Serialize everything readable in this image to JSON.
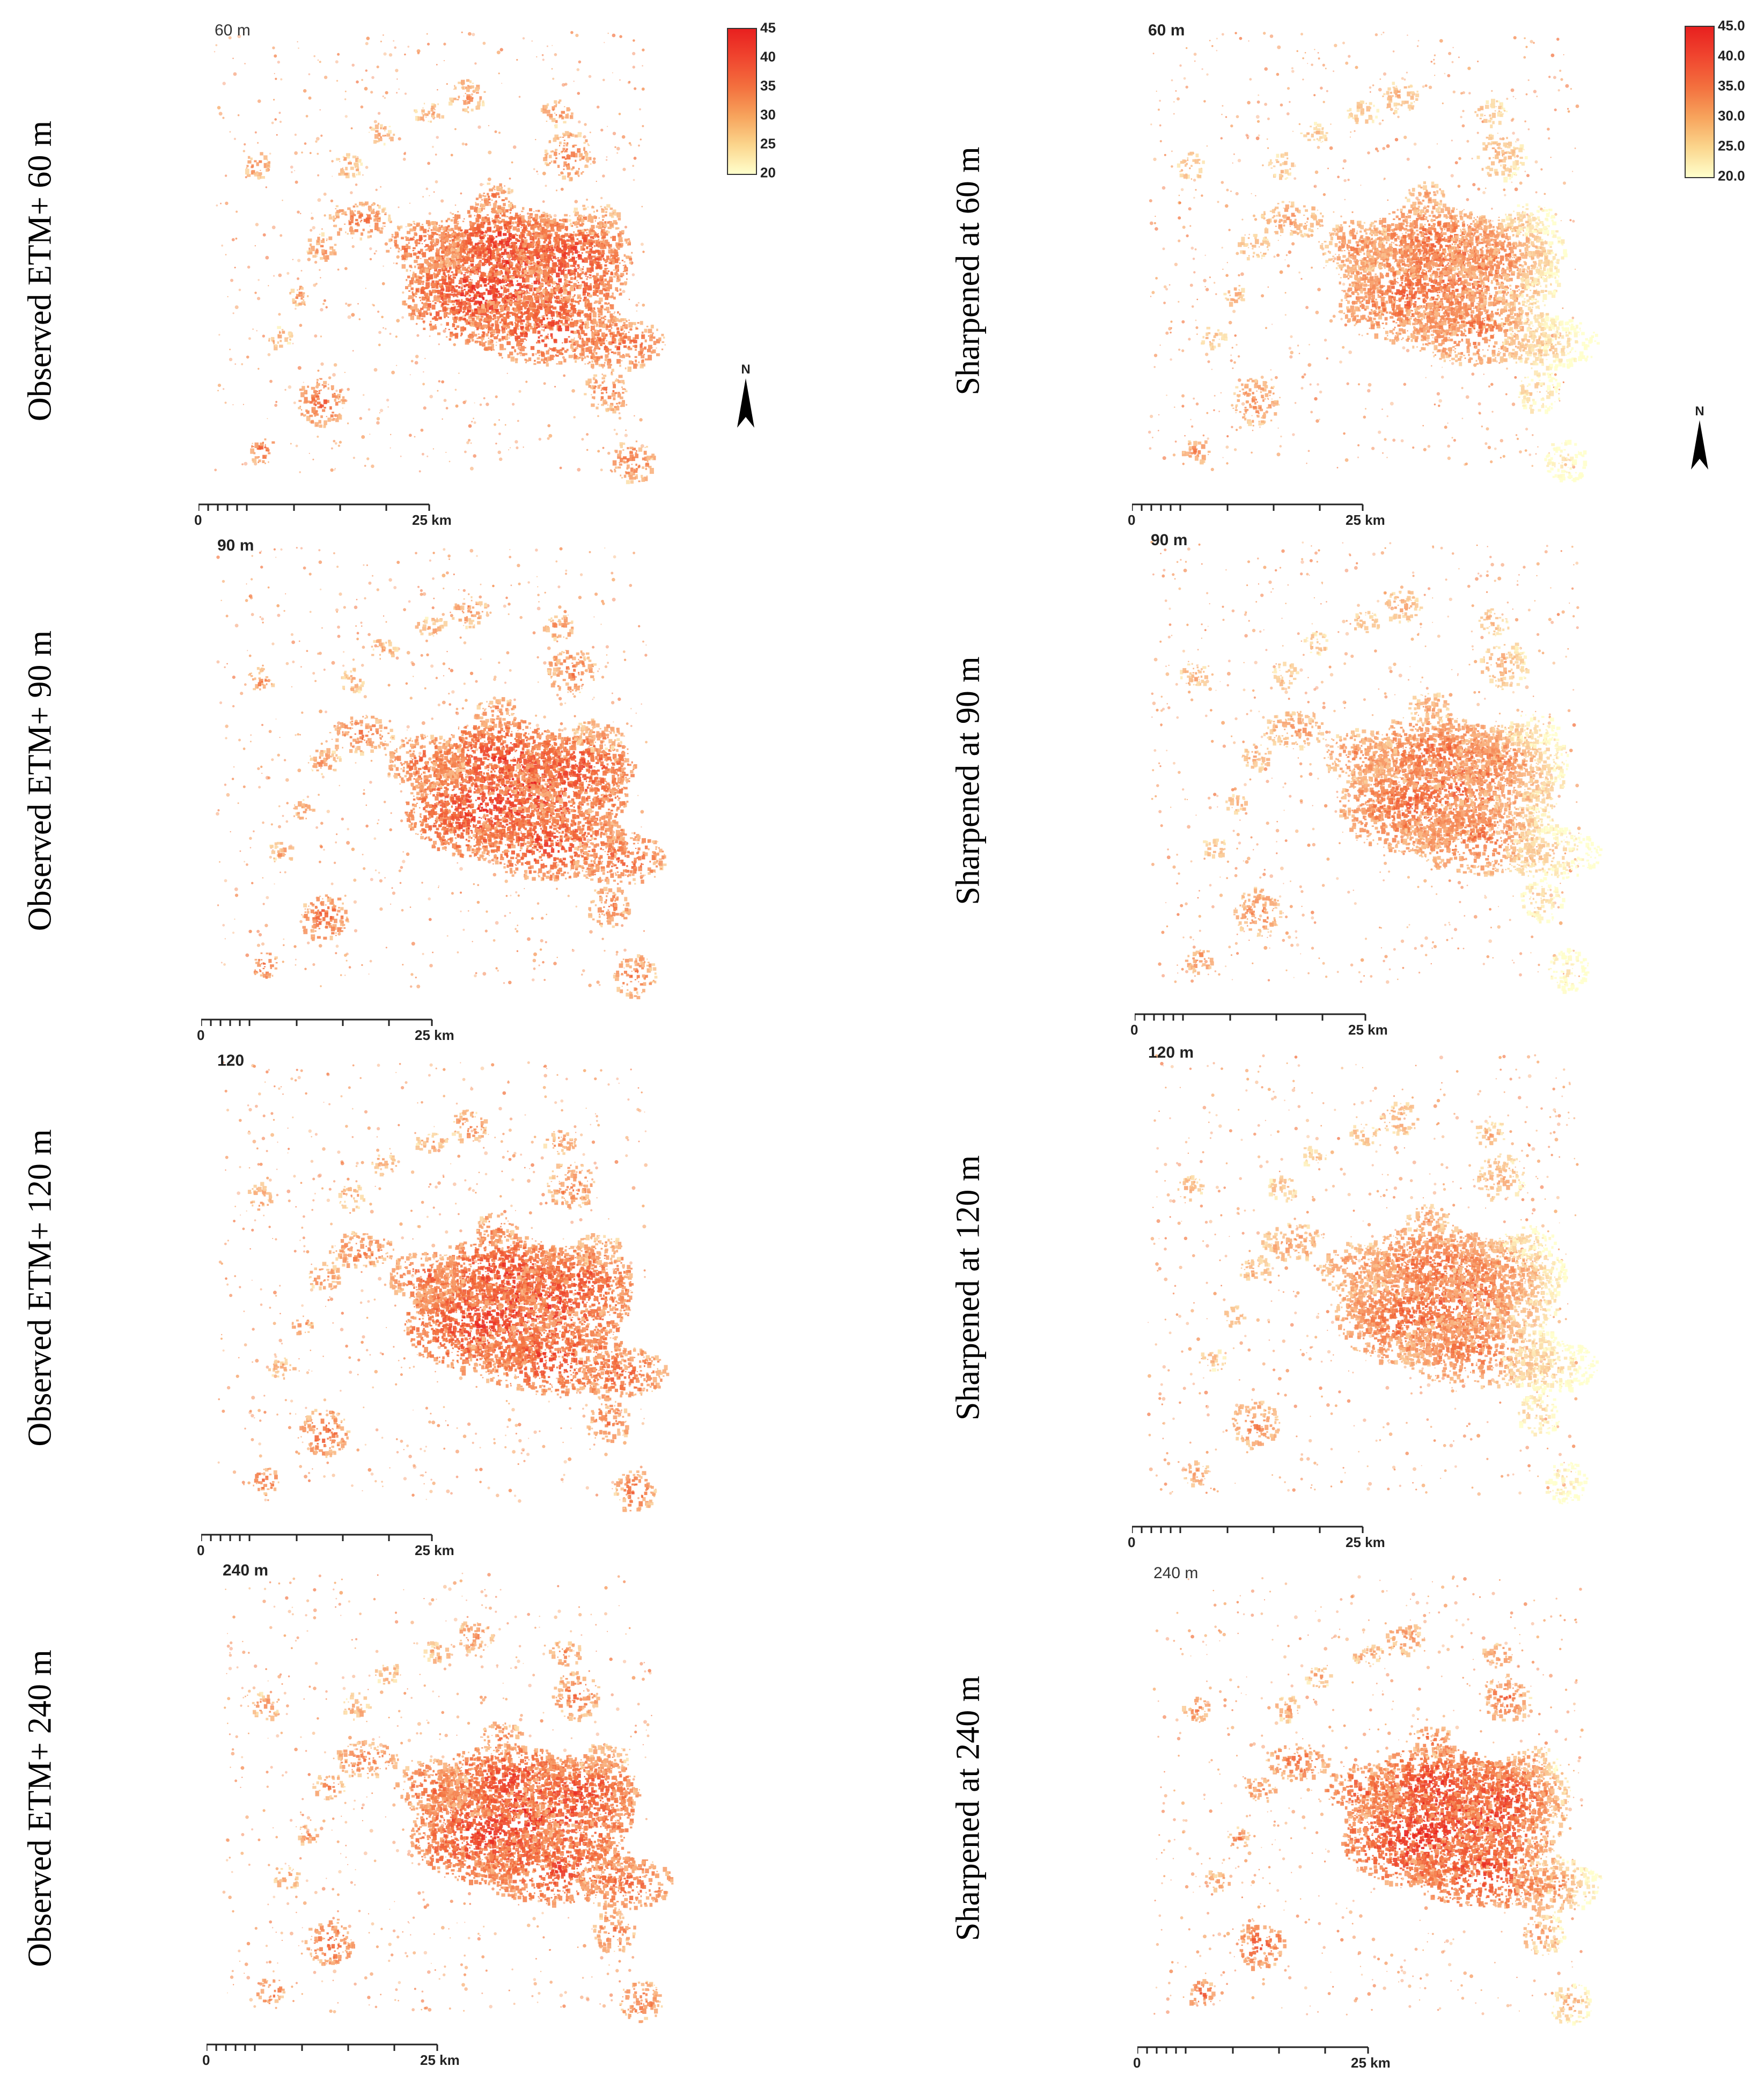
{
  "colors": {
    "hot": "#e8201f",
    "warm": "#f3703e",
    "mild": "#f7a35c",
    "cool": "#ffffcc",
    "ink": "#222222"
  },
  "rows": [
    {
      "left_label": "Observed ETM+ 60 m",
      "left_res": "60 m",
      "right_label": "Sharpened at 60 m",
      "right_res": "60 m"
    },
    {
      "left_label": "Observed ETM+ 90 m",
      "left_res": "90 m",
      "right_label": "Sharpened at 90 m",
      "right_res": "90 m"
    },
    {
      "left_label": "Observed ETM+ 120 m",
      "left_res": "120",
      "right_label": "Sharpened at 120 m",
      "right_res": "120 m"
    },
    {
      "left_label": "Observed ETM+ 240 m",
      "left_res": "240 m",
      "right_label": "Sharpened at 240 m",
      "right_res": "240 m"
    }
  ],
  "scale_bar": {
    "start": "0",
    "end": "25 km"
  },
  "legend_left": {
    "ticks": [
      "45",
      "40",
      "35",
      "30",
      "25",
      "20"
    ]
  },
  "legend_right": {
    "ticks": [
      "45.0",
      "40.0",
      "35.0",
      "30.0",
      "25.0",
      "20.0"
    ]
  },
  "north_arrow": {
    "label": "N",
    "icon": "north-arrow-icon"
  }
}
